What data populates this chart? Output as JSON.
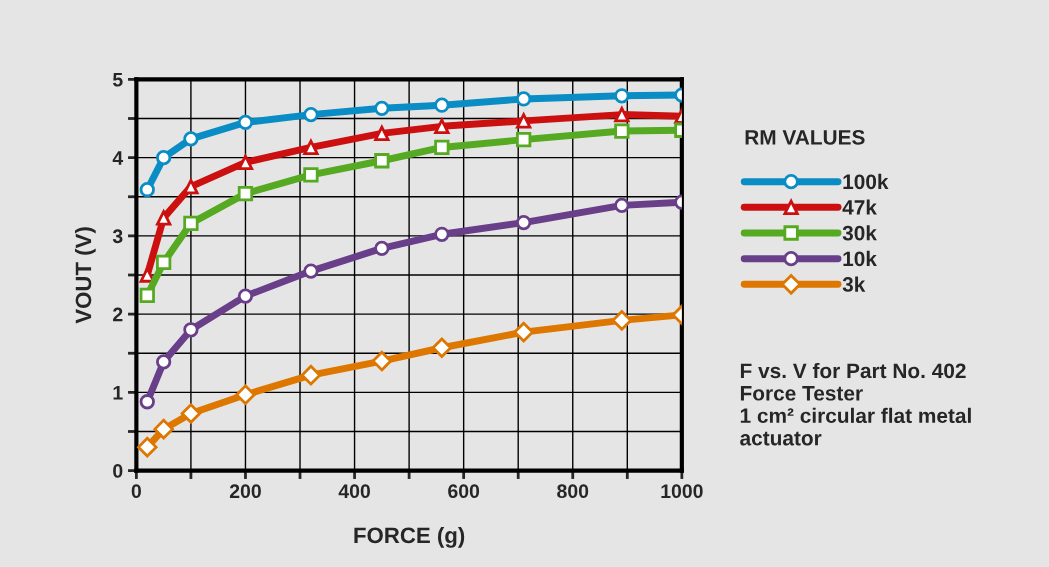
{
  "chart_data": {
    "type": "line",
    "xlabel": "FORCE (g)",
    "ylabel": "VOUT (V)",
    "legend_title": "RM VALUES",
    "x": [
      20,
      50,
      100,
      200,
      320,
      450,
      560,
      710,
      890,
      1000
    ],
    "series": [
      {
        "name": "100k",
        "color": "#0a8cc4",
        "marker": "circle",
        "values": [
          3.59,
          4.0,
          4.24,
          4.45,
          4.55,
          4.63,
          4.67,
          4.75,
          4.79,
          4.8
        ]
      },
      {
        "name": "47k",
        "color": "#cc1010",
        "marker": "triangle",
        "values": [
          2.5,
          3.23,
          3.63,
          3.94,
          4.13,
          4.31,
          4.4,
          4.47,
          4.55,
          4.53
        ]
      },
      {
        "name": "30k",
        "color": "#55aa22",
        "marker": "square",
        "values": [
          2.24,
          2.66,
          3.16,
          3.54,
          3.78,
          3.96,
          4.13,
          4.23,
          4.34,
          4.35
        ]
      },
      {
        "name": "10k",
        "color": "#6a3f8a",
        "marker": "circle",
        "values": [
          0.88,
          1.39,
          1.8,
          2.23,
          2.55,
          2.84,
          3.02,
          3.17,
          3.39,
          3.43
        ]
      },
      {
        "name": "3k",
        "color": "#dd7700",
        "marker": "diamond",
        "values": [
          0.3,
          0.53,
          0.73,
          0.97,
          1.22,
          1.4,
          1.57,
          1.77,
          1.92,
          1.99
        ]
      }
    ],
    "xlim": [
      0,
      1000
    ],
    "ylim": [
      0,
      5
    ],
    "xticks": [
      0,
      {
        "value": 100,
        "label": null
      },
      200,
      {
        "value": 300,
        "label": null
      },
      400,
      {
        "value": 500,
        "label": null
      },
      600,
      {
        "value": 700,
        "label": null
      },
      800,
      {
        "value": 900,
        "label": null
      },
      1000
    ],
    "yticks": [
      0,
      {
        "value": 0.5,
        "label": null
      },
      1,
      {
        "value": 1.5,
        "label": null
      },
      2,
      {
        "value": 2.5,
        "label": null
      },
      3,
      {
        "value": 3.5,
        "label": null
      },
      4,
      {
        "value": 4.5,
        "label": null
      },
      5
    ],
    "grid": true,
    "legend": "right",
    "line_style": "solid",
    "annotations": [
      "F vs. V for Part No. 402\nForce Tester\n1 cm² circular flat metal\nactuator"
    ]
  }
}
